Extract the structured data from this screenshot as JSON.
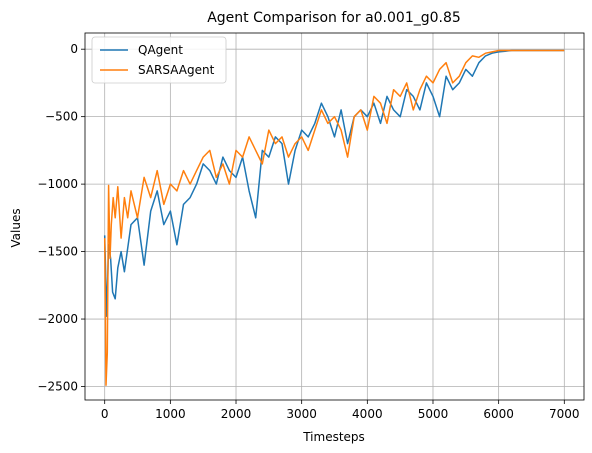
{
  "chart_data": {
    "type": "line",
    "title": "Agent Comparison for a0.001_g0.85",
    "xlabel": "Timesteps",
    "ylabel": "Values",
    "xlim": [
      -300,
      7300
    ],
    "ylim": [
      -2600,
      120
    ],
    "xticks": [
      0,
      1000,
      2000,
      3000,
      4000,
      5000,
      6000,
      7000
    ],
    "xtick_labels": [
      "0",
      "1000",
      "2000",
      "3000",
      "4000",
      "5000",
      "6000",
      "7000"
    ],
    "yticks": [
      0,
      -500,
      -1000,
      -1500,
      -2000,
      -2500
    ],
    "ytick_labels": [
      "0",
      "−500",
      "−1000",
      "−1500",
      "−2000",
      "−2500"
    ],
    "grid": true,
    "legend": "top-left",
    "series": [
      {
        "name": "QAgent",
        "color": "#1f77b4",
        "x": [
          0,
          30,
          60,
          90,
          120,
          160,
          200,
          250,
          300,
          400,
          500,
          600,
          700,
          800,
          900,
          1000,
          1100,
          1200,
          1300,
          1400,
          1500,
          1600,
          1700,
          1800,
          1900,
          2000,
          2100,
          2200,
          2300,
          2400,
          2500,
          2600,
          2700,
          2800,
          2900,
          3000,
          3100,
          3200,
          3300,
          3400,
          3500,
          3600,
          3700,
          3800,
          3900,
          4000,
          4100,
          4200,
          4300,
          4400,
          4500,
          4600,
          4700,
          4800,
          4900,
          5000,
          5100,
          5200,
          5300,
          5400,
          5500,
          5600,
          5700,
          5800,
          5900,
          6000,
          6100,
          6200,
          6400,
          6600,
          6800,
          7000
        ],
        "y": [
          -1380,
          -1980,
          -1450,
          -1550,
          -1800,
          -1850,
          -1620,
          -1500,
          -1650,
          -1300,
          -1250,
          -1600,
          -1200,
          -1050,
          -1300,
          -1200,
          -1450,
          -1150,
          -1100,
          -1000,
          -850,
          -900,
          -1000,
          -800,
          -900,
          -950,
          -800,
          -1050,
          -1250,
          -750,
          -800,
          -650,
          -700,
          -1000,
          -750,
          -600,
          -650,
          -550,
          -400,
          -500,
          -650,
          -450,
          -700,
          -500,
          -450,
          -500,
          -400,
          -550,
          -350,
          -450,
          -500,
          -300,
          -350,
          -450,
          -250,
          -350,
          -500,
          -200,
          -300,
          -250,
          -150,
          -200,
          -100,
          -50,
          -30,
          -20,
          -15,
          -10,
          -10,
          -10,
          -10,
          -10
        ]
      },
      {
        "name": "SARSAAgent",
        "color": "#ff7f0e",
        "x": [
          0,
          20,
          40,
          60,
          80,
          100,
          130,
          160,
          200,
          250,
          300,
          350,
          400,
          500,
          600,
          700,
          800,
          900,
          1000,
          1100,
          1200,
          1300,
          1400,
          1500,
          1600,
          1700,
          1800,
          1900,
          2000,
          2100,
          2200,
          2300,
          2400,
          2500,
          2600,
          2700,
          2800,
          2900,
          3000,
          3100,
          3200,
          3300,
          3400,
          3500,
          3600,
          3700,
          3800,
          3900,
          4000,
          4100,
          4200,
          4300,
          4400,
          4500,
          4600,
          4700,
          4800,
          4900,
          5000,
          5100,
          5200,
          5300,
          5400,
          5500,
          5600,
          5700,
          5800,
          5900,
          6000,
          6100,
          6200,
          6400,
          6600,
          6800,
          7000
        ],
        "y": [
          -1400,
          -2490,
          -2250,
          -1010,
          -1550,
          -1300,
          -1100,
          -1250,
          -1020,
          -1400,
          -1100,
          -1250,
          -1050,
          -1250,
          -950,
          -1100,
          -900,
          -1150,
          -1000,
          -1050,
          -900,
          -1000,
          -900,
          -800,
          -750,
          -950,
          -850,
          -1000,
          -750,
          -800,
          -650,
          -750,
          -850,
          -600,
          -700,
          -650,
          -800,
          -700,
          -650,
          -750,
          -600,
          -450,
          -550,
          -500,
          -600,
          -800,
          -500,
          -450,
          -600,
          -350,
          -400,
          -550,
          -300,
          -350,
          -250,
          -450,
          -300,
          -200,
          -250,
          -150,
          -100,
          -250,
          -200,
          -100,
          -50,
          -60,
          -30,
          -20,
          -10,
          -10,
          -10,
          -10,
          -10,
          -10,
          -10
        ]
      }
    ]
  }
}
